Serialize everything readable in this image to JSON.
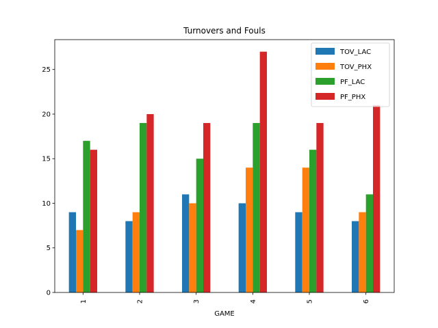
{
  "chart_data": {
    "type": "bar",
    "title": "Turnovers and Fouls",
    "xlabel": "GAME",
    "ylabel": "",
    "categories": [
      "1",
      "2",
      "3",
      "4",
      "5",
      "6"
    ],
    "ylim": [
      0,
      28.35
    ],
    "yticks": [
      0,
      5,
      10,
      15,
      20,
      25
    ],
    "grid": false,
    "legend_position": "top-right",
    "series": [
      {
        "name": "TOV_LAC",
        "color": "#1f77b4",
        "values": [
          9,
          8,
          11,
          10,
          9,
          8
        ]
      },
      {
        "name": "TOV_PHX",
        "color": "#ff7f0e",
        "values": [
          7,
          9,
          10,
          14,
          14,
          9
        ]
      },
      {
        "name": "PF_LAC",
        "color": "#2ca02c",
        "values": [
          17,
          19,
          15,
          19,
          16,
          11
        ]
      },
      {
        "name": "PF_PHX",
        "color": "#d62728",
        "values": [
          16,
          20,
          19,
          27,
          19,
          21
        ]
      }
    ]
  }
}
